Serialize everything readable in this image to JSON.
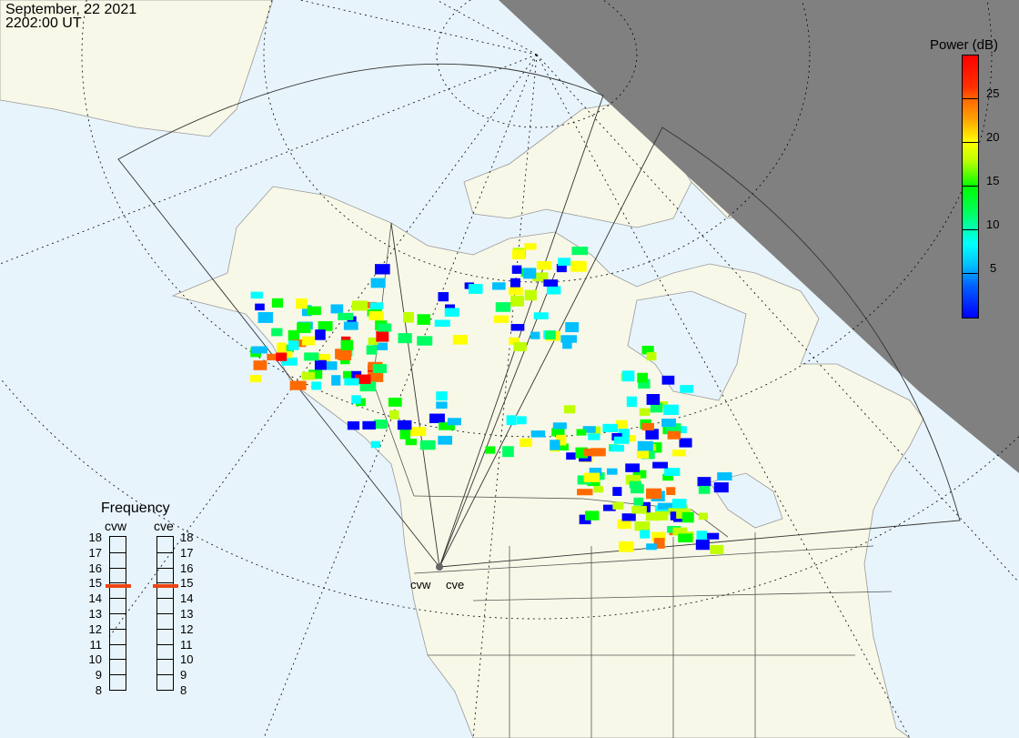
{
  "header": {
    "date": "September, 22 2021",
    "time": "2202:00 UT"
  },
  "colorbar": {
    "title": "Power (dB)",
    "ticks": [
      "25",
      "20",
      "15",
      "10",
      "5"
    ],
    "range": [
      0,
      30
    ],
    "colors": [
      "#0000ff",
      "#00c0ff",
      "#00ffff",
      "#00ff60",
      "#00ff00",
      "#c0ff00",
      "#ffff00",
      "#ff6a00",
      "#ff0000"
    ]
  },
  "frequency": {
    "title": "Frequency",
    "unit_range": [
      8,
      18
    ],
    "ticks": [
      "18",
      "17",
      "16",
      "15",
      "14",
      "13",
      "12",
      "11",
      "10",
      "9",
      "8"
    ],
    "radars": [
      {
        "name": "cvw",
        "value_mhz": 14.8
      },
      {
        "name": "cve",
        "value_mhz": 14.8
      }
    ],
    "marker_color": "#ee4411"
  },
  "map": {
    "site_labels": [
      "cvw",
      "cve"
    ],
    "ocean_color": "#e8f4fc",
    "land_color": "#f8f8e8",
    "night_color": "#808080"
  }
}
